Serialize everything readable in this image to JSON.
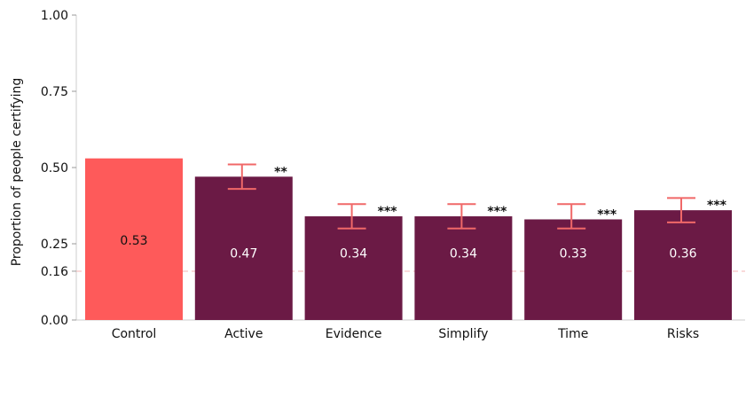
{
  "chart_data": {
    "type": "bar",
    "ylabel": "Proportion of people certifying",
    "xlabel": "",
    "ylim": [
      0,
      1
    ],
    "yticks": [
      0,
      0.16,
      0.25,
      0.5,
      0.75,
      1
    ],
    "ytick_labels": [
      "0.00",
      "0.16",
      "0.25",
      "0.50",
      "0.75",
      "1.00"
    ],
    "reference_line": 0.16,
    "categories": [
      "Control",
      "Active",
      "Evidence",
      "Simplify",
      "Time",
      "Risks"
    ],
    "values": [
      0.53,
      0.47,
      0.34,
      0.34,
      0.33,
      0.36
    ],
    "value_labels": [
      "0.53",
      "0.47",
      "0.34",
      "0.34",
      "0.33",
      "0.36"
    ],
    "error_low": [
      null,
      0.43,
      0.3,
      0.3,
      0.3,
      0.32
    ],
    "error_high": [
      null,
      0.51,
      0.38,
      0.38,
      0.38,
      0.4
    ],
    "significance": [
      "",
      "**",
      "***",
      "***",
      "***",
      "***"
    ],
    "colors": {
      "control": "#fe5a5a",
      "treatment": "#6b1a45",
      "error_bar": "#f06868",
      "reference_line": "#f3b5b5",
      "axis": "#cccccc"
    }
  }
}
